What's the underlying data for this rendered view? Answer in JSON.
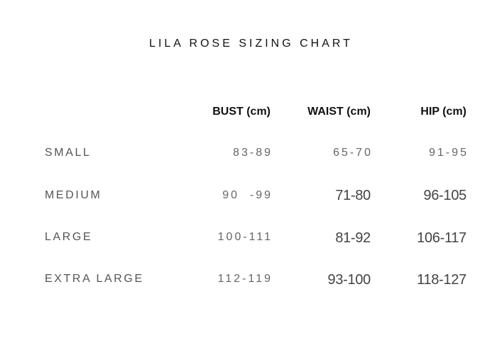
{
  "title": "LILA ROSE SIZING CHART",
  "columns": [
    "BUST (cm)",
    "WAIST (cm)",
    "HIP (cm)"
  ],
  "rows": [
    {
      "size": "SMALL",
      "bust": "83-89",
      "waist": "65-70",
      "hip": "91-95"
    },
    {
      "size": "MEDIUM",
      "bust": "90  -99",
      "waist": "71-80",
      "hip": "96-105"
    },
    {
      "size": "LARGE",
      "bust": "100-111",
      "waist": "81-92",
      "hip": "106-117"
    },
    {
      "size": "EXTRA LARGE",
      "bust": "112-119",
      "waist": "93-100",
      "hip": "118-127"
    }
  ]
}
